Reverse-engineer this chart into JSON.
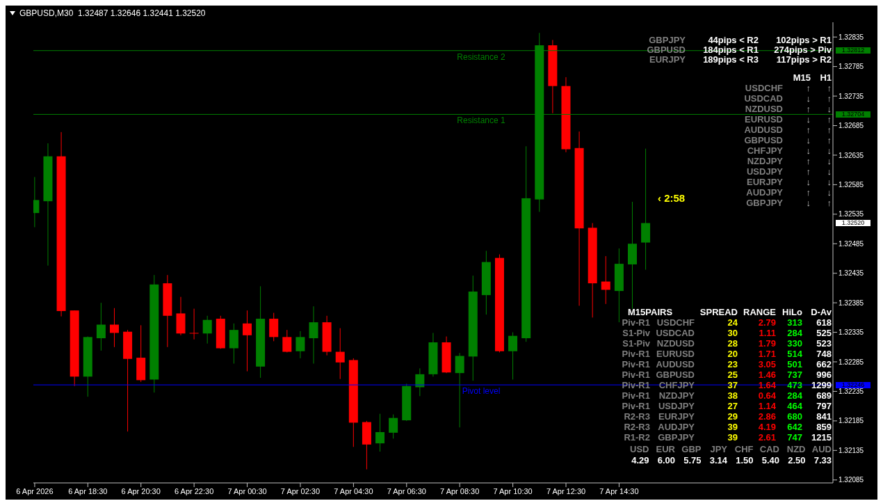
{
  "chart_data": {
    "type": "candlestick",
    "title": "GBPUSD,M30  1.32487 1.32646 1.32441 1.32520",
    "x": [
      "2026-04-06T16:30",
      "2026-04-06T17:00",
      "2026-04-06T17:30",
      "2026-04-06T18:00",
      "2026-04-06T18:30",
      "2026-04-06T19:00",
      "2026-04-06T19:30",
      "2026-04-06T20:00",
      "2026-04-06T20:30",
      "2026-04-06T21:00",
      "2026-04-06T21:30",
      "2026-04-06T22:00",
      "2026-04-06T22:30",
      "2026-04-06T23:00",
      "2026-04-06T23:30",
      "2026-04-07T00:00",
      "2026-04-07T00:30",
      "2026-04-07T01:00",
      "2026-04-07T01:30",
      "2026-04-07T02:00",
      "2026-04-07T02:30",
      "2026-04-07T03:00",
      "2026-04-07T03:30",
      "2026-04-07T04:00",
      "2026-04-07T04:30",
      "2026-04-07T05:00",
      "2026-04-07T05:30",
      "2026-04-07T06:00",
      "2026-04-07T06:30",
      "2026-04-07T07:00",
      "2026-04-07T07:30",
      "2026-04-07T08:00",
      "2026-04-07T08:30",
      "2026-04-07T09:00",
      "2026-04-07T09:30",
      "2026-04-07T10:00",
      "2026-04-07T10:30",
      "2026-04-07T11:00",
      "2026-04-07T11:30",
      "2026-04-07T12:00",
      "2026-04-07T12:30",
      "2026-04-07T13:00",
      "2026-04-07T13:30",
      "2026-04-07T14:00",
      "2026-04-07T14:30",
      "2026-04-07T15:00",
      "2026-04-07T15:30"
    ],
    "ohlc": [
      [
        1.32537,
        1.32598,
        1.32513,
        1.32559
      ],
      [
        1.32557,
        1.32655,
        1.32448,
        1.32633
      ],
      [
        1.32633,
        1.32674,
        1.32362,
        1.32371
      ],
      [
        1.32372,
        1.32372,
        1.32244,
        1.3226
      ],
      [
        1.3226,
        1.32328,
        1.32226,
        1.32327
      ],
      [
        1.32325,
        1.32385,
        1.32304,
        1.32348
      ],
      [
        1.32348,
        1.32376,
        1.3231,
        1.32334
      ],
      [
        1.32336,
        1.32339,
        1.32167,
        1.3229
      ],
      [
        1.32292,
        1.32347,
        1.32251,
        1.32254
      ],
      [
        1.32255,
        1.32432,
        1.32233,
        1.32416
      ],
      [
        1.32418,
        1.32432,
        1.3231,
        1.32363
      ],
      [
        1.32367,
        1.32395,
        1.3233,
        1.32333
      ],
      [
        1.32334,
        1.32375,
        1.32323,
        1.32333
      ],
      [
        1.32333,
        1.32363,
        1.32316,
        1.32356
      ],
      [
        1.32358,
        1.32363,
        1.32307,
        1.32308
      ],
      [
        1.32308,
        1.3235,
        1.32282,
        1.32339
      ],
      [
        1.3235,
        1.32372,
        1.32269,
        1.3233
      ],
      [
        1.32277,
        1.32413,
        1.32258,
        1.32358
      ],
      [
        1.32358,
        1.32368,
        1.3232,
        1.32327
      ],
      [
        1.32327,
        1.32339,
        1.32301,
        1.32302
      ],
      [
        1.32303,
        1.32337,
        1.32291,
        1.32327
      ],
      [
        1.32325,
        1.32379,
        1.32282,
        1.32352
      ],
      [
        1.32352,
        1.32363,
        1.32296,
        1.32302
      ],
      [
        1.32302,
        1.32342,
        1.32256,
        1.32284
      ],
      [
        1.32288,
        1.32291,
        1.32141,
        1.32182
      ],
      [
        1.32183,
        1.32185,
        1.32103,
        1.32145
      ],
      [
        1.32147,
        1.32197,
        1.32133,
        1.32166
      ],
      [
        1.32165,
        1.32196,
        1.32155,
        1.3219
      ],
      [
        1.32186,
        1.32248,
        1.32185,
        1.32244
      ],
      [
        1.32242,
        1.32274,
        1.32227,
        1.32264
      ],
      [
        1.32264,
        1.32334,
        1.3226,
        1.32318
      ],
      [
        1.32318,
        1.32328,
        1.32266,
        1.32267
      ],
      [
        1.32266,
        1.323,
        1.32174,
        1.32295
      ],
      [
        1.32294,
        1.32431,
        1.32253,
        1.32404
      ],
      [
        1.32398,
        1.32473,
        1.32365,
        1.32454
      ],
      [
        1.32461,
        1.32467,
        1.32301,
        1.32303
      ],
      [
        1.32303,
        1.32335,
        1.32255,
        1.32329
      ],
      [
        1.32325,
        1.3265,
        1.32319,
        1.32562
      ],
      [
        1.3256,
        1.32842,
        1.32539,
        1.32821
      ],
      [
        1.32821,
        1.3283,
        1.32706,
        1.32752
      ],
      [
        1.32752,
        1.32767,
        1.3264,
        1.32645
      ],
      [
        1.32647,
        1.32675,
        1.3238,
        1.32511
      ],
      [
        1.32512,
        1.3252,
        1.3236,
        1.32418
      ],
      [
        1.32421,
        1.32464,
        1.32383,
        1.32407
      ],
      [
        1.32405,
        1.32477,
        1.32352,
        1.32451
      ],
      [
        1.3245,
        1.32556,
        1.32375,
        1.32485
      ],
      [
        1.32487,
        1.32646,
        1.32441,
        1.3252
      ]
    ],
    "colors": [
      "#008000",
      "#008000",
      "#ff0000",
      "#ff0000",
      "#008000",
      "#008000",
      "#ff0000",
      "#ff0000",
      "#ff0000",
      "#008000",
      "#ff0000",
      "#ff0000",
      "#ff0000",
      "#008000",
      "#ff0000",
      "#008000",
      "#ff0000",
      "#008000",
      "#ff0000",
      "#ff0000",
      "#008000",
      "#008000",
      "#ff0000",
      "#ff0000",
      "#ff0000",
      "#ff0000",
      "#008000",
      "#008000",
      "#008000",
      "#008000",
      "#008000",
      "#ff0000",
      "#008000",
      "#008000",
      "#008000",
      "#ff0000",
      "#008000",
      "#008000",
      "#008000",
      "#ff0000",
      "#ff0000",
      "#ff0000",
      "#ff0000",
      "#ff0000",
      "#008000",
      "#008000",
      "#008000"
    ],
    "xlim": [
      "2026-04-06T16:27",
      "2026-04-07T22:33"
    ],
    "xticks": [
      {
        "value": "2026-04-06T16:30",
        "label": "6 Apr 2026"
      },
      {
        "value": "2026-04-06T18:30",
        "label": "6 Apr 18:30"
      },
      {
        "value": "2026-04-06T20:30",
        "label": "6 Apr 20:30"
      },
      {
        "value": "2026-04-06T22:30",
        "label": "6 Apr 22:30"
      },
      {
        "value": "2026-04-07T00:30",
        "label": "7 Apr 00:30"
      },
      {
        "value": "2026-04-07T02:30",
        "label": "7 Apr 02:30"
      },
      {
        "value": "2026-04-07T04:30",
        "label": "7 Apr 04:30"
      },
      {
        "value": "2026-04-07T06:30",
        "label": "7 Apr 06:30"
      },
      {
        "value": "2026-04-07T08:30",
        "label": "7 Apr 08:30"
      },
      {
        "value": "2026-04-07T10:30",
        "label": "7 Apr 10:30"
      },
      {
        "value": "2026-04-07T12:30",
        "label": "7 Apr 12:30"
      },
      {
        "value": "2026-04-07T14:30",
        "label": "7 Apr 14:30"
      }
    ],
    "ylim": [
      1.3208,
      1.3286
    ],
    "yticks": [
      1.32085,
      1.32135,
      1.32185,
      1.32235,
      1.32285,
      1.32335,
      1.32385,
      1.32435,
      1.32485,
      1.32535,
      1.32585,
      1.32635,
      1.32685,
      1.32735,
      1.32785,
      1.32835
    ],
    "ref_lines": [
      {
        "axis": "y",
        "value": 1.32812,
        "label": "Resistance 2",
        "color": "#008000"
      },
      {
        "axis": "y",
        "value": 1.32704,
        "label": "Resistance 1",
        "color": "#008000"
      },
      {
        "axis": "y",
        "value": 1.32246,
        "label": "Pivot level",
        "color": "#0000ff"
      }
    ],
    "annotations": [
      "‹ 2:58",
      "GBPJPY\t44pips < R2\t102pips > R1",
      "GBPUSD\t184pips < R1\t274pips > Piv",
      "EURJPY\t189pips < R3\t117pips > R2",
      "\tM15\tH1",
      "USDCHF\t↑\t↑",
      "USDCAD\t↓\t↑",
      "NZDUSD\t↑\t↓",
      "EURUSD\t↓\t↑",
      "AUDUSD\t↑\t↑",
      "GBPUSD\t↓\t↑",
      "CHFJPY\t↓\t↓",
      "NZDJPY\t↑\t↓",
      "USDJPY\t↑\t↓",
      "EURJPY\t↓\t↓",
      "AUDJPY\t↑\t↓",
      "GBPJPY\t↓\t↑",
      "M15PAIRS\tSPREAD\tRANGE\tHiLo\tD-Av",
      "Piv-R1\tUSDCHF\t24\t2.79\t313\t618",
      "S1-Piv\tUSDCAD\t30\t1.11\t284\t525",
      "S1-Piv\tNZDUSD\t28\t1.79\t330\t523",
      "Piv-R1\tEURUSD\t20\t1.71\t514\t748",
      "Piv-R1\tAUDUSD\t23\t3.05\t501\t662",
      "Piv-R1\tGBPUSD\t25\t1.46\t737\t996",
      "Piv-R1\tCHFJPY\t37\t1.64\t473\t1299",
      "Piv-R1\tNZDJPY\t38\t0.64\t284\t689",
      "Piv-R1\tUSDJPY\t27\t1.14\t464\t797",
      "R2-R3\tEURJPY\t29\t2.86\t680\t841",
      "R2-R3\tAUDJPY\t39\t4.19\t642\t859",
      "R1-R2\tGBPJPY\t39\t2.61\t747\t1215",
      "USD\tEUR\tGBP\tJPY\tCHF\tCAD\tNZD\tAUD",
      "4.29\t6.00\t5.75\t3.14\t1.50\t5.40\t2.50\t7.33",
      "1.32812",
      "1.32704",
      "1.32520",
      "1.32246"
    ]
  }
}
